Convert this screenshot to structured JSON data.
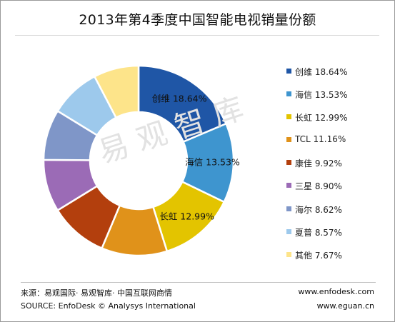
{
  "chart_data": {
    "type": "pie",
    "title": "2013年第4季度中国智能电视销量份额",
    "categories": [
      "创维",
      "海信",
      "长虹",
      "TCL",
      "康佳",
      "三星",
      "海尔",
      "夏普",
      "其他"
    ],
    "values": [
      18.64,
      13.53,
      12.99,
      11.16,
      9.92,
      8.9,
      8.62,
      8.57,
      7.67
    ],
    "labels": [
      "创维 18.64%",
      "海信 13.53%",
      "长虹 12.99%",
      "TCL 11.16%",
      "康佳 9.92%",
      "三星 8.90%",
      "海尔 8.62%",
      "夏普 8.57%",
      "其他 7.67%"
    ],
    "slice_labels_shown": [
      "创维 18.64%",
      "海信 13.53%",
      "长虹 12.99%"
    ],
    "colors": [
      "#1f56a6",
      "#3e95cf",
      "#e3c400",
      "#e0921a",
      "#b33f0d",
      "#9b6bb6",
      "#7f96c8",
      "#9dc9ec",
      "#fde48a"
    ],
    "donut": true,
    "legend_position": "right"
  },
  "watermark": "易观智库",
  "footer": {
    "source_cn": "来源：易观国际· 易观智库· 中国互联网商情",
    "source_en": "SOURCE: EnfoDesk © Analysys International",
    "site1": "www.enfodesk.com",
    "site2": "www.eguan.cn"
  }
}
